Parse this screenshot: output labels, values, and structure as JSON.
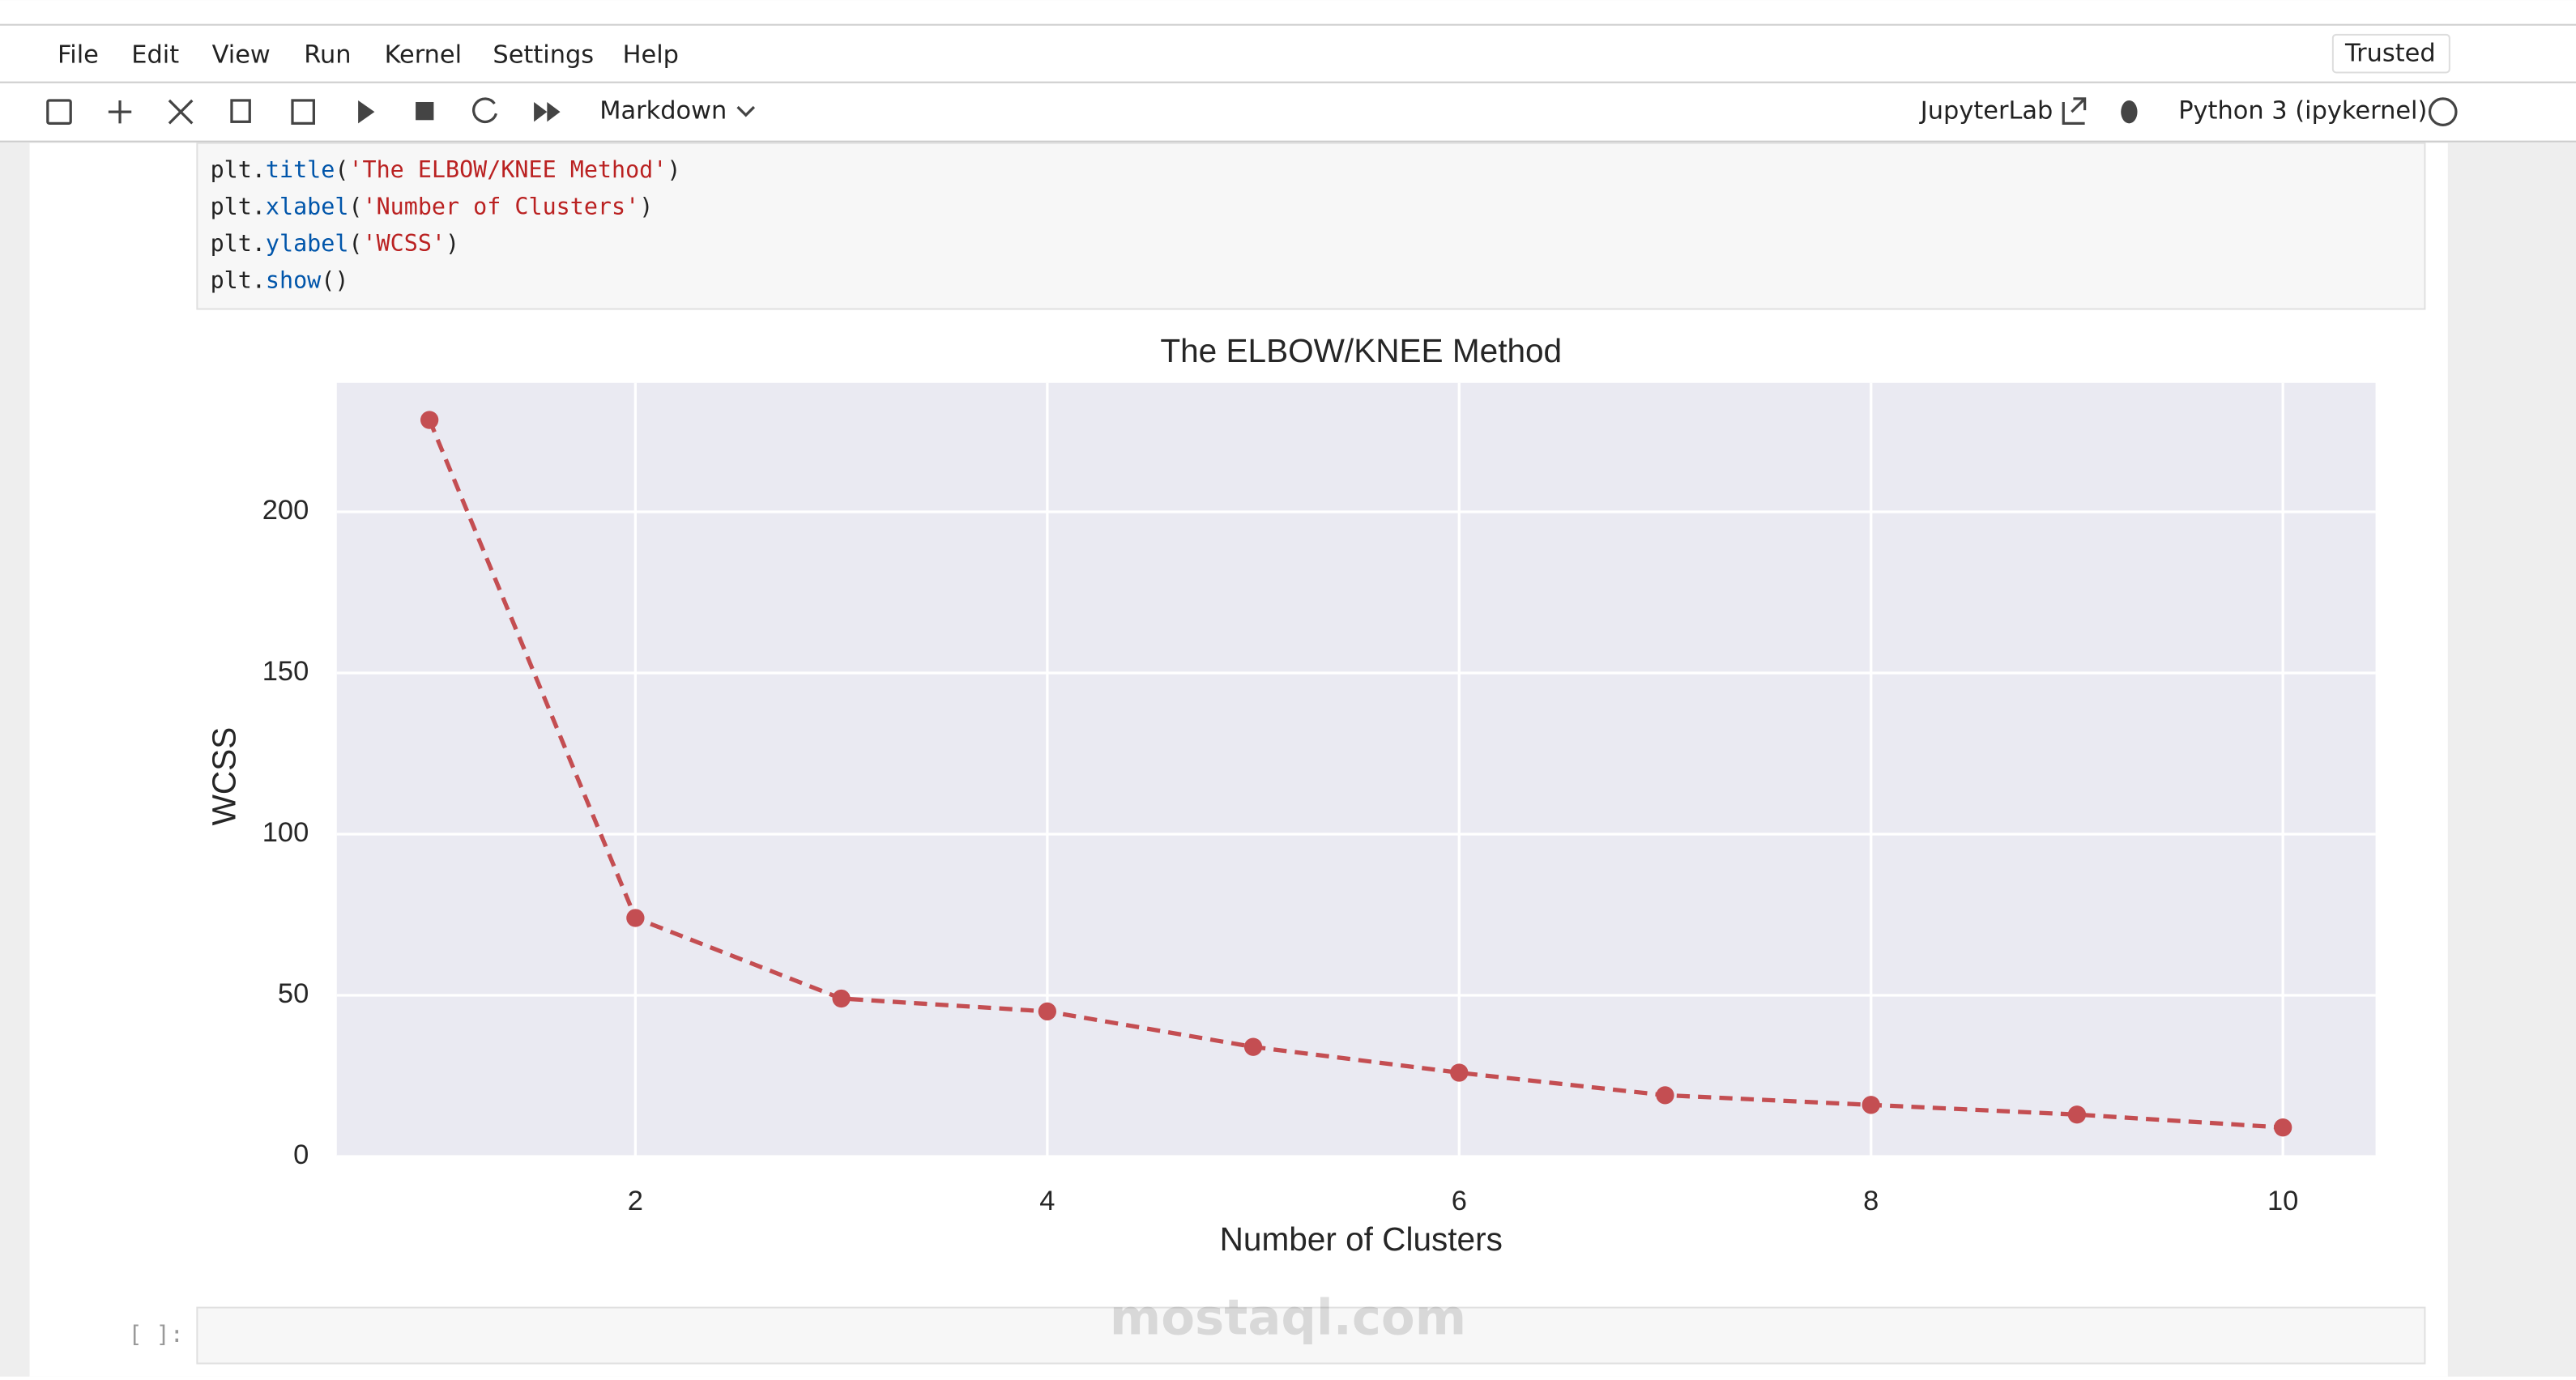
{
  "menu": [
    "File",
    "Edit",
    "View",
    "Run",
    "Kernel",
    "Settings",
    "Help"
  ],
  "trusted": "Trusted",
  "toolbar": {
    "cell_type": "Markdown",
    "jupyterlab": "JupyterLab",
    "kernel": "Python 3 (ipykernel)"
  },
  "code": [
    "plt.title('The ELBOW/KNEE Method')",
    "plt.xlabel('Number of Clusters')",
    "plt.ylabel('WCSS')",
    "plt.show()"
  ],
  "prompt": "[ ]:",
  "watermark": "mostaql.com",
  "chart_data": {
    "type": "line",
    "title": "The ELBOW/KNEE Method",
    "x_label": "Number of Clusters",
    "y_label": "WCSS",
    "x": [
      1,
      2,
      3,
      4,
      5,
      6,
      7,
      8,
      9,
      10
    ],
    "series": [
      {
        "name": "WCSS",
        "color": "#c44e52",
        "values": [
          228.5,
          74,
          49,
          45,
          34,
          26,
          19,
          16,
          13,
          9
        ]
      }
    ],
    "xlim": [
      0.55,
      10.45
    ],
    "xticks": [
      2,
      4,
      6,
      8,
      10
    ],
    "ylim": [
      0,
      240
    ],
    "yticks": [
      0,
      50,
      100,
      150,
      200
    ],
    "grid": true,
    "line_style": "dashed"
  }
}
